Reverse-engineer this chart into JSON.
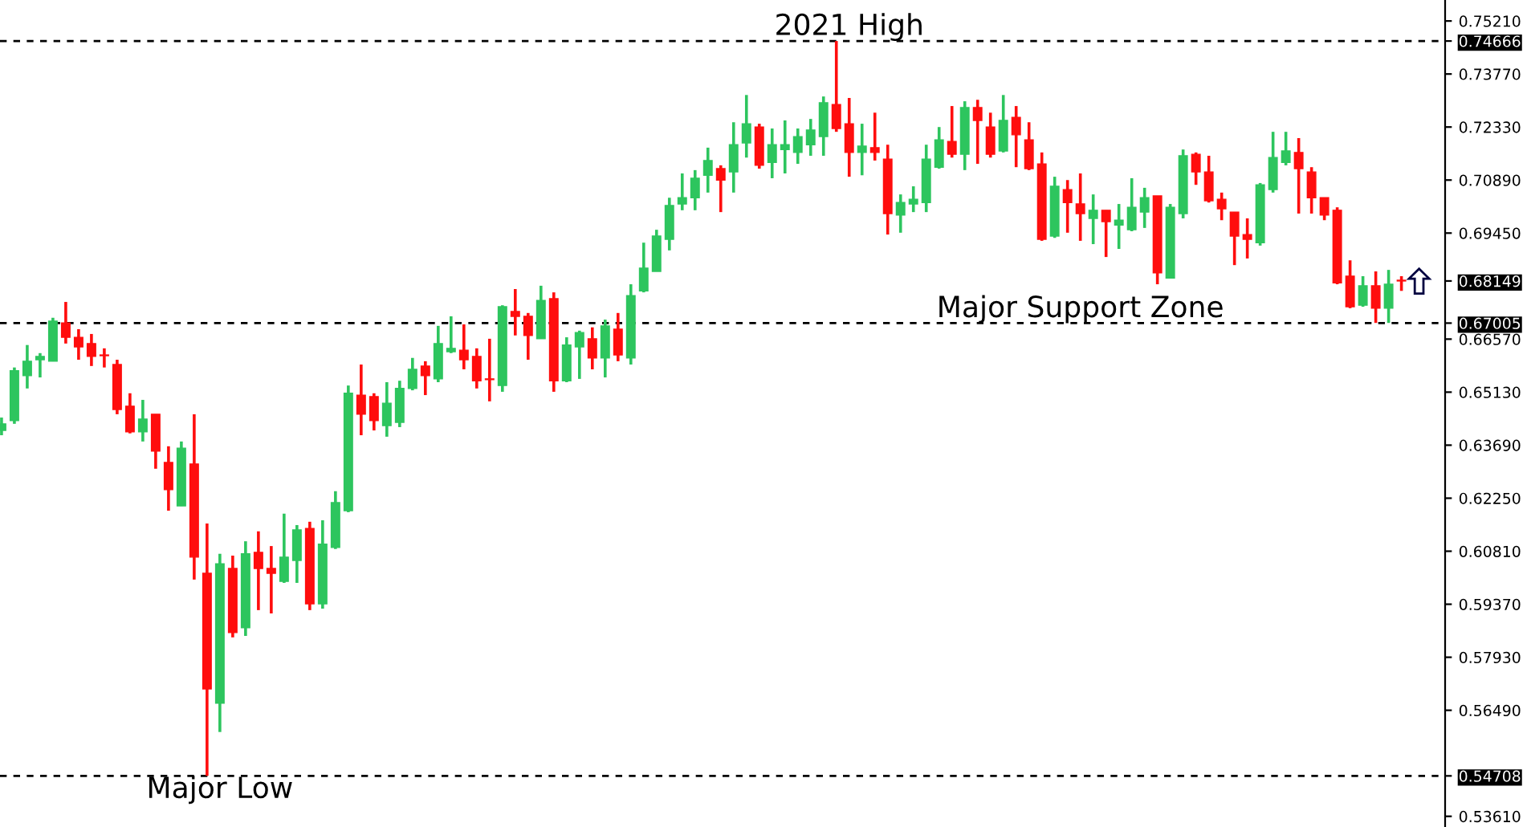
{
  "chart_data": {
    "type": "candlestick",
    "colors": [
      "#2dc55e",
      "#2dc55e",
      "#2dc55e",
      "#2dc55e",
      "#2dc55e",
      "#ff0d0d",
      "#ff0d0d",
      "#ff0d0d",
      "#ff0d0d",
      "#ff0d0d",
      "#ff0d0d",
      "#2dc55e",
      "#ff0d0d",
      "#ff0d0d",
      "#2dc55e",
      "#ff0d0d",
      "#ff0d0d",
      "#2dc55e",
      "#ff0d0d",
      "#2dc55e",
      "#ff0d0d",
      "#ff0d0d",
      "#2dc55e",
      "#2dc55e",
      "#ff0d0d",
      "#2dc55e",
      "#2dc55e",
      "#2dc55e",
      "#ff0d0d",
      "#ff0d0d",
      "#2dc55e",
      "#2dc55e",
      "#2dc55e",
      "#ff0d0d",
      "#2dc55e",
      "#2dc55e",
      "#ff0d0d",
      "#ff0d0d",
      "#ff0d0d",
      "#2dc55e",
      "#ff0d0d",
      "#ff0d0d",
      "#2dc55e",
      "#ff0d0d",
      "#2dc55e",
      "#2dc55e",
      "#ff0d0d",
      "#2dc55e",
      "#ff0d0d",
      "#2dc55e",
      "#2dc55e",
      "#2dc55e",
      "#2dc55e",
      "#2dc55e",
      "#2dc55e",
      "#2dc55e",
      "#ff0d0d",
      "#2dc55e",
      "#2dc55e",
      "#ff0d0d",
      "#2dc55e",
      "#2dc55e",
      "#2dc55e",
      "#2dc55e",
      "#2dc55e",
      "#ff0d0d",
      "#ff0d0d",
      "#2dc55e",
      "#ff0d0d",
      "#ff0d0d",
      "#2dc55e",
      "#2dc55e",
      "#2dc55e",
      "#2dc55e",
      "#ff0d0d",
      "#2dc55e",
      "#ff0d0d",
      "#ff0d0d",
      "#2dc55e",
      "#ff0d0d",
      "#ff0d0d",
      "#ff0d0d",
      "#2dc55e",
      "#ff0d0d",
      "#ff0d0d",
      "#2dc55e",
      "#ff0d0d",
      "#2dc55e",
      "#2dc55e",
      "#2dc55e",
      "#ff0d0d",
      "#2dc55e",
      "#2dc55e",
      "#ff0d0d",
      "#ff0d0d",
      "#ff0d0d",
      "#ff0d0d",
      "#ff0d0d",
      "#2dc55e",
      "#2dc55e",
      "#2dc55e",
      "#ff0d0d",
      "#ff0d0d",
      "#ff0d0d",
      "#ff0d0d",
      "#ff0d0d",
      "#2dc55e",
      "#ff0d0d",
      "#2dc55e",
      "#ff0d0d"
    ],
    "categories": [
      null,
      null,
      null,
      null,
      null,
      null,
      null,
      null,
      null,
      null,
      null,
      null,
      null,
      null,
      null,
      null,
      null,
      null,
      null,
      null,
      null,
      null,
      null,
      null,
      null,
      null,
      null,
      null,
      null,
      null,
      null,
      null,
      null,
      null,
      null,
      null,
      null,
      null,
      null,
      null,
      null,
      null,
      null,
      null,
      null,
      null,
      null,
      null,
      null,
      null,
      null,
      null,
      null,
      null,
      null,
      null,
      null,
      null,
      null,
      null,
      null,
      null,
      null,
      null,
      null,
      null,
      null,
      null,
      null,
      null,
      null,
      null,
      null,
      null,
      null,
      null,
      null,
      null,
      null,
      null,
      null,
      null,
      null,
      null,
      null,
      null,
      null,
      null,
      null,
      null,
      null,
      null,
      null,
      null,
      null,
      null,
      null,
      null,
      null,
      null,
      null,
      null,
      null,
      null,
      null,
      null,
      null,
      null,
      null,
      null
    ],
    "ohlc": [
      [
        0.6409,
        0.6444,
        0.6396,
        0.6427
      ],
      [
        0.6436,
        0.658,
        0.6427,
        0.6571
      ],
      [
        0.6558,
        0.6641,
        0.6523,
        0.6597
      ],
      [
        0.6601,
        0.6619,
        0.6553,
        0.661
      ],
      [
        0.6597,
        0.6715,
        0.6597,
        0.6706
      ],
      [
        0.6701,
        0.6758,
        0.6645,
        0.6662
      ],
      [
        0.6662,
        0.6684,
        0.6601,
        0.6636
      ],
      [
        0.6645,
        0.6671,
        0.6584,
        0.661
      ],
      [
        0.6614,
        0.6632,
        0.658,
        0.6612
      ],
      [
        0.6588,
        0.6601,
        0.6453,
        0.6466
      ],
      [
        0.6475,
        0.651,
        0.6401,
        0.6405
      ],
      [
        0.6405,
        0.6492,
        0.6379,
        0.644
      ],
      [
        0.6453,
        0.6453,
        0.6305,
        0.6353
      ],
      [
        0.6322,
        0.6366,
        0.6191,
        0.6248
      ],
      [
        0.6204,
        0.6379,
        0.6204,
        0.6361
      ],
      [
        0.6318,
        0.6453,
        0.6004,
        0.6065
      ],
      [
        0.6021,
        0.6156,
        0.54708,
        0.5707
      ],
      [
        0.5668,
        0.6074,
        0.559,
        0.6047
      ],
      [
        0.6034,
        0.6069,
        0.5847,
        0.586
      ],
      [
        0.5873,
        0.6108,
        0.5851,
        0.6074
      ],
      [
        0.6078,
        0.6135,
        0.5921,
        0.6034
      ],
      [
        0.6034,
        0.6095,
        0.5912,
        0.6021
      ],
      [
        0.5999,
        0.6183,
        0.5995,
        0.6065
      ],
      [
        0.6056,
        0.6152,
        0.5995,
        0.6139
      ],
      [
        0.6143,
        0.6161,
        0.5921,
        0.5938
      ],
      [
        0.5938,
        0.6165,
        0.5925,
        0.61
      ],
      [
        0.6091,
        0.6244,
        0.6087,
        0.6213
      ],
      [
        0.6191,
        0.6531,
        0.6187,
        0.651
      ],
      [
        0.6505,
        0.6588,
        0.6396,
        0.6453
      ],
      [
        0.6501,
        0.651,
        0.6409,
        0.6436
      ],
      [
        0.6422,
        0.654,
        0.6392,
        0.6483
      ],
      [
        0.6431,
        0.6544,
        0.6418,
        0.6523
      ],
      [
        0.6523,
        0.6606,
        0.6518,
        0.6575
      ],
      [
        0.6584,
        0.6597,
        0.6505,
        0.6558
      ],
      [
        0.6549,
        0.6693,
        0.654,
        0.6645
      ],
      [
        0.6623,
        0.6719,
        0.6619,
        0.6632
      ],
      [
        0.6627,
        0.6697,
        0.6575,
        0.6601
      ],
      [
        0.661,
        0.6632,
        0.6523,
        0.6544
      ],
      [
        0.6549,
        0.6658,
        0.6488,
        0.6547
      ],
      [
        0.6531,
        0.6749,
        0.6514,
        0.6745
      ],
      [
        0.6732,
        0.6793,
        0.6667,
        0.6719
      ],
      [
        0.6719,
        0.6728,
        0.6601,
        0.6667
      ],
      [
        0.6658,
        0.6802,
        0.6658,
        0.6762
      ],
      [
        0.6767,
        0.6784,
        0.6514,
        0.6544
      ],
      [
        0.6544,
        0.6662,
        0.654,
        0.6641
      ],
      [
        0.6636,
        0.668,
        0.6549,
        0.6675
      ],
      [
        0.6658,
        0.6689,
        0.6575,
        0.6606
      ],
      [
        0.6606,
        0.671,
        0.6553,
        0.6693
      ],
      [
        0.6684,
        0.6728,
        0.6597,
        0.6614
      ],
      [
        0.6606,
        0.6806,
        0.6588,
        0.6775
      ],
      [
        0.6788,
        0.6919,
        0.6784,
        0.685
      ],
      [
        0.6841,
        0.6954,
        0.6841,
        0.6937
      ],
      [
        0.6928,
        0.7041,
        0.6898,
        0.702
      ],
      [
        0.7024,
        0.7107,
        0.7007,
        0.7041
      ],
      [
        0.7041,
        0.7116,
        0.7007,
        0.7094
      ],
      [
        0.7102,
        0.7177,
        0.7055,
        0.7142
      ],
      [
        0.712,
        0.7129,
        0.7002,
        0.7089
      ],
      [
        0.7111,
        0.7246,
        0.7055,
        0.7185
      ],
      [
        0.719,
        0.732,
        0.715,
        0.7242
      ],
      [
        0.7233,
        0.7242,
        0.712,
        0.7129
      ],
      [
        0.7137,
        0.7229,
        0.7094,
        0.7185
      ],
      [
        0.7172,
        0.7251,
        0.7107,
        0.7185
      ],
      [
        0.7164,
        0.7229,
        0.7133,
        0.7207
      ],
      [
        0.7185,
        0.7255,
        0.7155,
        0.7225
      ],
      [
        0.7207,
        0.7316,
        0.7155,
        0.7299
      ],
      [
        0.7294,
        0.74666,
        0.722,
        0.7229
      ],
      [
        0.7242,
        0.7312,
        0.7098,
        0.7164
      ],
      [
        0.7164,
        0.7242,
        0.7102,
        0.7181
      ],
      [
        0.7177,
        0.7272,
        0.7142,
        0.7164
      ],
      [
        0.7146,
        0.7185,
        0.6941,
        0.6998
      ],
      [
        0.6994,
        0.705,
        0.6946,
        0.7028
      ],
      [
        0.7024,
        0.7072,
        0.7002,
        0.7037
      ],
      [
        0.7028,
        0.7185,
        0.7002,
        0.7146
      ],
      [
        0.7124,
        0.7233,
        0.712,
        0.7198
      ],
      [
        0.7194,
        0.729,
        0.715,
        0.7159
      ],
      [
        0.7159,
        0.7303,
        0.7116,
        0.7286
      ],
      [
        0.7286,
        0.7307,
        0.7133,
        0.7251
      ],
      [
        0.7233,
        0.7272,
        0.715,
        0.7159
      ],
      [
        0.7168,
        0.732,
        0.7164,
        0.7251
      ],
      [
        0.7259,
        0.729,
        0.7124,
        0.7212
      ],
      [
        0.7198,
        0.7246,
        0.7116,
        0.712
      ],
      [
        0.7133,
        0.7164,
        0.6924,
        0.6928
      ],
      [
        0.6937,
        0.7098,
        0.6932,
        0.7072
      ],
      [
        0.7063,
        0.7089,
        0.6946,
        0.7028
      ],
      [
        0.7024,
        0.7107,
        0.6924,
        0.6998
      ],
      [
        0.6985,
        0.705,
        0.6915,
        0.7007
      ],
      [
        0.7007,
        0.7007,
        0.688,
        0.6976
      ],
      [
        0.6967,
        0.7024,
        0.6902,
        0.698
      ],
      [
        0.6954,
        0.7094,
        0.695,
        0.7015
      ],
      [
        0.7002,
        0.7068,
        0.6959,
        0.7041
      ],
      [
        0.7046,
        0.7046,
        0.6806,
        0.6837
      ],
      [
        0.6823,
        0.7024,
        0.6823,
        0.7015
      ],
      [
        0.6998,
        0.7172,
        0.6985,
        0.7155
      ],
      [
        0.7159,
        0.7164,
        0.7076,
        0.7111
      ],
      [
        0.7111,
        0.7155,
        0.7028,
        0.7033
      ],
      [
        0.7037,
        0.7055,
        0.698,
        0.7011
      ],
      [
        0.7002,
        0.7002,
        0.6858,
        0.6937
      ],
      [
        0.6941,
        0.6985,
        0.6876,
        0.6928
      ],
      [
        0.6919,
        0.7081,
        0.6911,
        0.7076
      ],
      [
        0.7063,
        0.722,
        0.7055,
        0.715
      ],
      [
        0.7137,
        0.722,
        0.7129,
        0.7168
      ],
      [
        0.7164,
        0.7203,
        0.6998,
        0.712
      ],
      [
        0.7111,
        0.7124,
        0.6998,
        0.7041
      ],
      [
        0.7041,
        0.7041,
        0.698,
        0.6994
      ],
      [
        0.7007,
        0.7015,
        0.6806,
        0.681
      ],
      [
        0.6828,
        0.6871,
        0.6741,
        0.6745
      ],
      [
        0.6749,
        0.6828,
        0.6745,
        0.6802
      ],
      [
        0.6802,
        0.6841,
        0.6701,
        0.6741
      ],
      [
        0.6741,
        0.6845,
        0.6701,
        0.6806
      ],
      [
        0.6817,
        0.6828,
        0.6788,
        0.68149
      ]
    ],
    "ylim": [
      0.5332,
      0.7578
    ],
    "yticks": [
      {
        "value": 0.7521,
        "label": "0.75210"
      },
      {
        "value": 0.74666,
        "label": "0.74666"
      },
      {
        "value": 0.7377,
        "label": "0.73770"
      },
      {
        "value": 0.7233,
        "label": "0.72330"
      },
      {
        "value": 0.7089,
        "label": "0.70890"
      },
      {
        "value": 0.6945,
        "label": "0.69450"
      },
      {
        "value": 0.68149,
        "label": "0.68149"
      },
      {
        "value": 0.67005,
        "label": "0.67005"
      },
      {
        "value": 0.6657,
        "label": "0.66570"
      },
      {
        "value": 0.6513,
        "label": "0.65130"
      },
      {
        "value": 0.6369,
        "label": "0.63690"
      },
      {
        "value": 0.6225,
        "label": "0.62250"
      },
      {
        "value": 0.6081,
        "label": "0.60810"
      },
      {
        "value": 0.5937,
        "label": "0.59370"
      },
      {
        "value": 0.5793,
        "label": "0.57930"
      },
      {
        "value": 0.5649,
        "label": "0.56490"
      },
      {
        "value": 0.54708,
        "label": "0.54708"
      },
      {
        "value": 0.5361,
        "label": "0.53610"
      }
    ],
    "ref_lines": [
      {
        "axis": "y",
        "value": 0.74666,
        "label": "2021 High",
        "color": "#000000",
        "line_style": "dashed"
      },
      {
        "axis": "y",
        "value": 0.67005,
        "label": "Major Support Zone",
        "color": "#000000",
        "line_style": "dashed"
      },
      {
        "axis": "y",
        "value": 0.54708,
        "label": "Major Low",
        "color": "#000000",
        "line_style": "dashed"
      }
    ],
    "grid": false
  }
}
